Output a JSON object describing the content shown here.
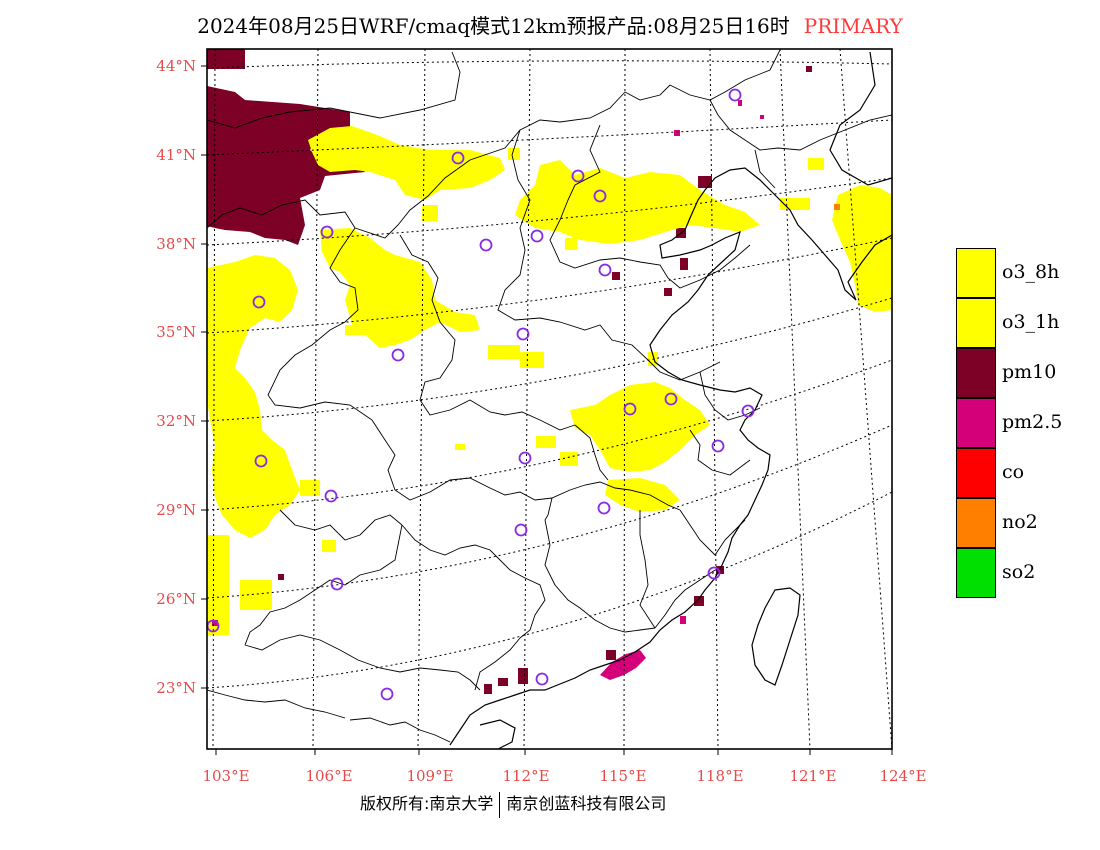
{
  "title": {
    "text": "2024年08月25日WRF/cmaq模式12km预报产品:08月25日16时",
    "flag": "PRIMARY",
    "flag_color": "#ff3a3a"
  },
  "axes": {
    "lat_labels": [
      "44°N",
      "41°N",
      "38°N",
      "35°N",
      "32°N",
      "29°N",
      "26°N",
      "23°N"
    ],
    "lon_labels": [
      "103°E",
      "106°E",
      "109°E",
      "112°E",
      "115°E",
      "118°E",
      "121°E",
      "124°E"
    ],
    "label_color": "#e84a4a",
    "lon_range": [
      102.8,
      124.0
    ],
    "lat_range": [
      21.0,
      44.5
    ]
  },
  "legend": [
    {
      "label": "o3_8h",
      "color": "#ffff00"
    },
    {
      "label": "o3_1h",
      "color": "#ffff00"
    },
    {
      "label": "pm10",
      "color": "#7d0026"
    },
    {
      "label": "pm2.5",
      "color": "#d4007a"
    },
    {
      "label": "co",
      "color": "#ff0000"
    },
    {
      "label": "no2",
      "color": "#ff7f00"
    },
    {
      "label": "so2",
      "color": "#00e000"
    }
  ],
  "footer": {
    "left": "版权所有:南京大学",
    "right": "南京创蓝科技有限公司"
  },
  "station_marker_color": "#8a2be2"
}
